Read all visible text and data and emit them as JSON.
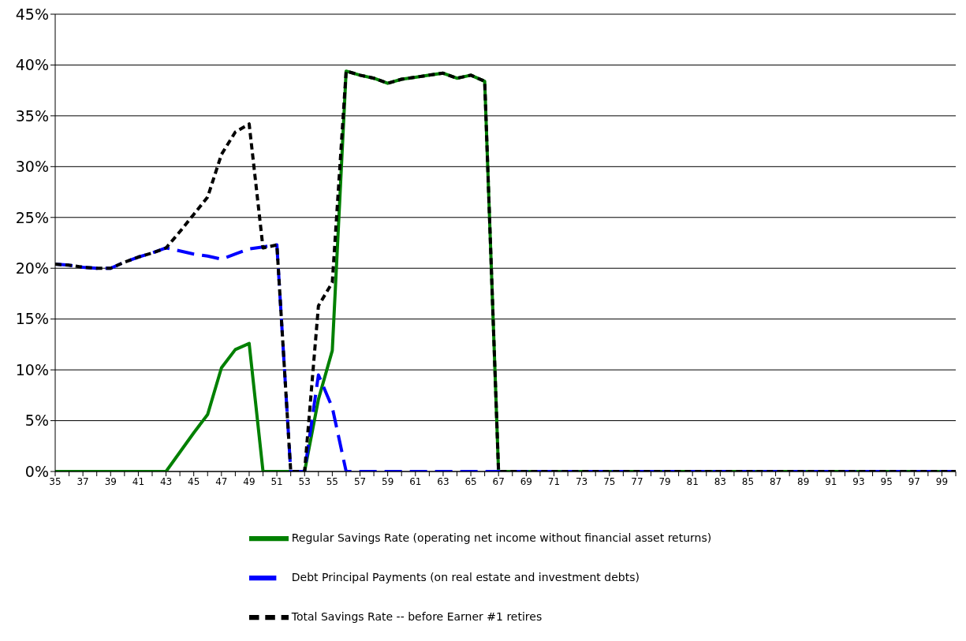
{
  "chart_data": {
    "type": "line",
    "x": [
      35,
      36,
      37,
      38,
      39,
      40,
      41,
      42,
      43,
      44,
      45,
      46,
      47,
      48,
      49,
      50,
      51,
      52,
      53,
      54,
      55,
      56,
      57,
      58,
      59,
      60,
      61,
      62,
      63,
      64,
      65,
      66,
      67,
      68,
      69,
      70,
      71,
      72,
      73,
      74,
      75,
      76,
      77,
      78,
      79,
      80,
      81,
      82,
      83,
      84,
      85,
      86,
      87,
      88,
      89,
      90,
      91,
      92,
      93,
      94,
      95,
      96,
      97,
      98,
      99,
      100
    ],
    "series": [
      {
        "name": "Regular Savings Rate (operating net income without financial asset returns)",
        "color": "#008000",
        "line_style": "solid",
        "values": [
          0,
          0,
          0,
          0,
          0,
          0,
          0,
          0,
          0,
          1.9,
          3.8,
          5.6,
          10.2,
          12.0,
          12.6,
          0,
          0,
          0,
          0,
          7.1,
          11.9,
          39.4,
          39.0,
          38.7,
          38.2,
          38.6,
          38.8,
          39.0,
          39.2,
          38.7,
          39.0,
          38.4,
          0,
          0,
          0,
          0,
          0,
          0,
          0,
          0,
          0,
          0,
          0,
          0,
          0,
          0,
          0,
          0,
          0,
          0,
          0,
          0,
          0,
          0,
          0,
          0,
          0,
          0,
          0,
          0,
          0,
          0,
          0,
          0,
          0,
          0
        ]
      },
      {
        "name": "Debt Principal Payments (on real estate and investment debts)",
        "color": "#0000ff",
        "line_style": "dashed",
        "values": [
          20.4,
          20.3,
          20.1,
          20.0,
          20.0,
          20.6,
          21.1,
          21.5,
          22.0,
          21.7,
          21.4,
          21.2,
          20.9,
          21.4,
          21.9,
          22.1,
          22.3,
          0,
          0,
          9.5,
          6.3,
          0,
          0,
          0,
          0,
          0,
          0,
          0,
          0,
          0,
          0,
          0,
          0,
          0,
          0,
          0,
          0,
          0,
          0,
          0,
          0,
          0,
          0,
          0,
          0,
          0,
          0,
          0,
          0,
          0,
          0,
          0,
          0,
          0,
          0,
          0,
          0,
          0,
          0,
          0,
          0,
          0,
          0,
          0,
          0,
          0
        ]
      },
      {
        "name": "Total Savings Rate -- before Earner #1 retires",
        "color": "#000000",
        "line_style": "dotted",
        "values": [
          20.4,
          20.3,
          20.1,
          20.0,
          20.0,
          20.6,
          21.1,
          21.5,
          22.0,
          23.6,
          25.3,
          27.0,
          31.2,
          33.4,
          34.2,
          22.0,
          22.3,
          0,
          0,
          16.3,
          18.6,
          39.4,
          39.0,
          38.7,
          38.2,
          38.6,
          38.8,
          39.0,
          39.2,
          38.7,
          39.0,
          38.4,
          0,
          0,
          0,
          0,
          0,
          0,
          0,
          0,
          0,
          0,
          0,
          0,
          0,
          0,
          0,
          0,
          0,
          0,
          0,
          0,
          0,
          0,
          0,
          0,
          0,
          0,
          0,
          0,
          0,
          0,
          0,
          0,
          0,
          0
        ]
      }
    ],
    "xlim": [
      35,
      100
    ],
    "xticks": [
      35,
      {
        "value": 36,
        "label": null
      },
      37,
      {
        "value": 38,
        "label": null
      },
      39,
      {
        "value": 40,
        "label": null
      },
      41,
      {
        "value": 42,
        "label": null
      },
      43,
      {
        "value": 44,
        "label": null
      },
      45,
      {
        "value": 46,
        "label": null
      },
      47,
      {
        "value": 48,
        "label": null
      },
      49,
      {
        "value": 50,
        "label": null
      },
      51,
      {
        "value": 52,
        "label": null
      },
      53,
      {
        "value": 54,
        "label": null
      },
      55,
      {
        "value": 56,
        "label": null
      },
      57,
      {
        "value": 58,
        "label": null
      },
      59,
      {
        "value": 60,
        "label": null
      },
      61,
      {
        "value": 62,
        "label": null
      },
      63,
      {
        "value": 64,
        "label": null
      },
      65,
      {
        "value": 66,
        "label": null
      },
      67,
      {
        "value": 68,
        "label": null
      },
      69,
      {
        "value": 70,
        "label": null
      },
      71,
      {
        "value": 72,
        "label": null
      },
      73,
      {
        "value": 74,
        "label": null
      },
      75,
      {
        "value": 76,
        "label": null
      },
      77,
      {
        "value": 78,
        "label": null
      },
      79,
      {
        "value": 80,
        "label": null
      },
      81,
      {
        "value": 82,
        "label": null
      },
      83,
      {
        "value": 84,
        "label": null
      },
      85,
      {
        "value": 86,
        "label": null
      },
      87,
      {
        "value": 88,
        "label": null
      },
      89,
      {
        "value": 90,
        "label": null
      },
      91,
      {
        "value": 92,
        "label": null
      },
      93,
      {
        "value": 94,
        "label": null
      },
      95,
      {
        "value": 96,
        "label": null
      },
      97,
      {
        "value": 98,
        "label": null
      },
      99,
      {
        "value": 100,
        "label": null
      }
    ],
    "ylim": [
      0,
      45
    ],
    "yticks": [
      {
        "value": 0,
        "label": "0%"
      },
      {
        "value": 5,
        "label": "5%"
      },
      {
        "value": 10,
        "label": "10%"
      },
      {
        "value": 15,
        "label": "15%"
      },
      {
        "value": 20,
        "label": "20%"
      },
      {
        "value": 25,
        "label": "25%"
      },
      {
        "value": 30,
        "label": "30%"
      },
      {
        "value": 35,
        "label": "35%"
      },
      {
        "value": 40,
        "label": "40%"
      },
      {
        "value": 45,
        "label": "45%"
      }
    ],
    "grid": "y",
    "legend": "bottom",
    "marker": "none"
  }
}
